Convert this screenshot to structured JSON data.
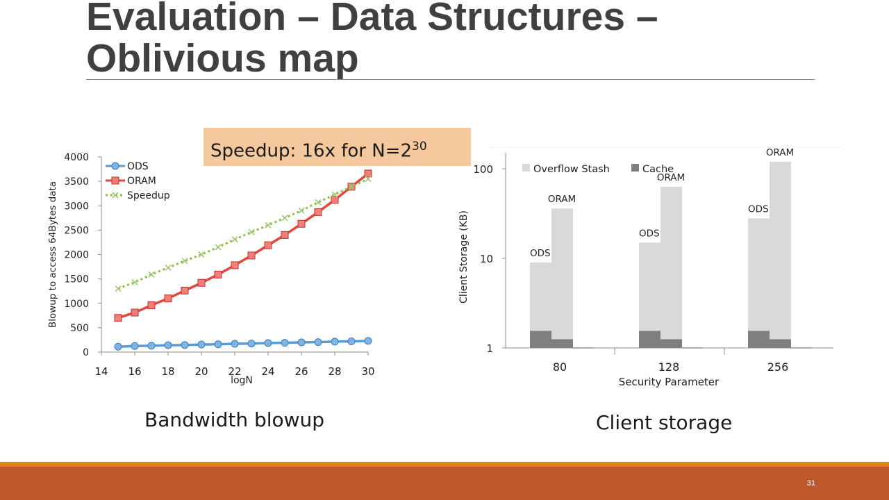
{
  "slide": {
    "title": "Evaluation – Data Structures – Oblivious map",
    "callout": {
      "text": "Speedup:  16x for N=2",
      "superscript": "30"
    },
    "left_caption": "Bandwidth  blowup",
    "right_caption": "Client storage",
    "slide_number": "31",
    "colors": {
      "footer": "#bd582c",
      "footer_stripe": "#e0841f",
      "callout_bg": "#f5c99d"
    }
  },
  "chart_data": [
    {
      "type": "line",
      "title": "",
      "xlabel": "logN",
      "ylabel": "Blowup to access 64Bytes data",
      "xlim": [
        14,
        30
      ],
      "ylim": [
        0,
        4000
      ],
      "xticks": [
        14,
        16,
        18,
        20,
        22,
        24,
        26,
        28,
        30
      ],
      "yticks": [
        0,
        500,
        1000,
        1500,
        2000,
        2500,
        3000,
        3500,
        4000
      ],
      "legend_position": "top-left",
      "x": [
        15,
        16,
        17,
        18,
        19,
        20,
        21,
        22,
        23,
        24,
        25,
        26,
        27,
        28,
        29,
        30
      ],
      "series": [
        {
          "name": "ODS",
          "color": "#5b9bd5",
          "marker": "circle",
          "values": [
            110,
            125,
            130,
            140,
            145,
            155,
            160,
            170,
            175,
            185,
            190,
            200,
            205,
            215,
            220,
            230
          ]
        },
        {
          "name": "ORAM",
          "color": "#e0473e",
          "marker": "square",
          "values": [
            700,
            810,
            960,
            1100,
            1260,
            1420,
            1590,
            1780,
            1980,
            2190,
            2400,
            2630,
            2870,
            3120,
            3390,
            3660
          ]
        },
        {
          "name": "Speedup",
          "color": "#8cbf3f",
          "marker": "x",
          "dashed": true,
          "values": [
            1300,
            1430,
            1590,
            1730,
            1870,
            2000,
            2150,
            2310,
            2460,
            2600,
            2750,
            2900,
            3070,
            3230,
            3390,
            3550
          ]
        }
      ]
    },
    {
      "type": "bar",
      "stacked": true,
      "scale": "log",
      "xlabel": "Security Parameter",
      "ylabel": "Client Storage (KB)",
      "ylim": [
        1,
        120
      ],
      "yticks": [
        1,
        10,
        100
      ],
      "categories": [
        "80",
        "128",
        "256"
      ],
      "bar_labels": [
        "ODS",
        "ORAM"
      ],
      "legend_position": "top",
      "series": [
        {
          "name": "Cache",
          "color": "#7f7f7f",
          "values": {
            "ODS": [
              1.55,
              1.55,
              1.55
            ],
            "ORAM": [
              1.25,
              1.25,
              1.25
            ]
          }
        },
        {
          "name": "Overflow Stash",
          "color": "#d9d9d9",
          "totals": {
            "ODS": [
              9,
              15,
              28
            ],
            "ORAM": [
              36,
              63,
              120
            ]
          }
        }
      ]
    }
  ]
}
